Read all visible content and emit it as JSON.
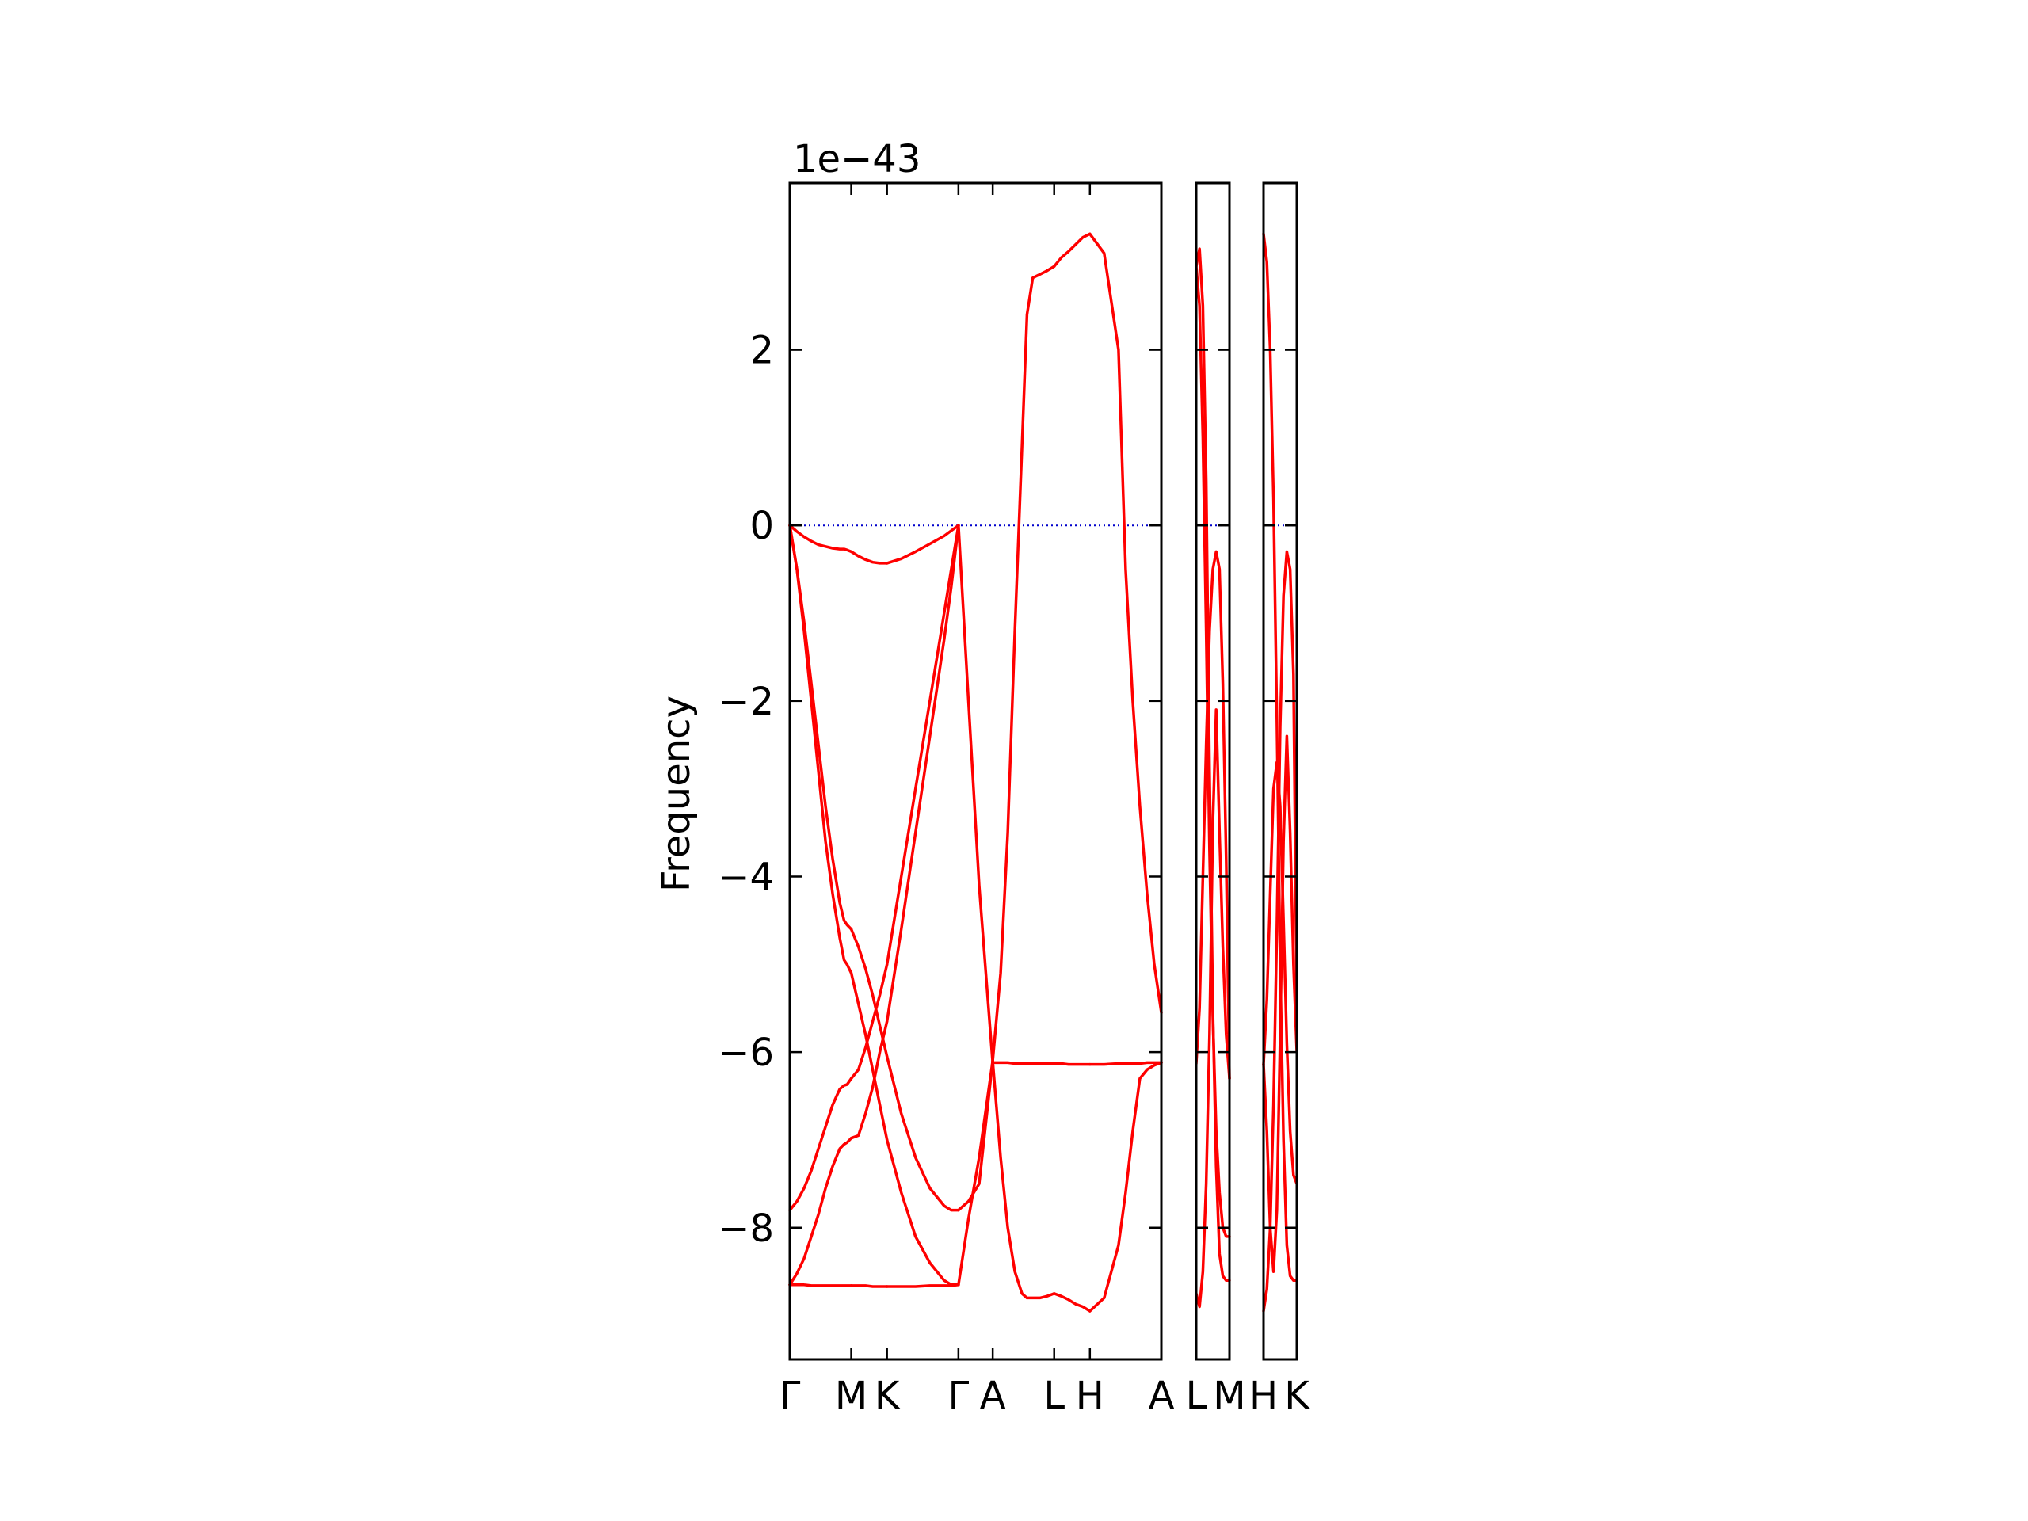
{
  "chart_data": {
    "type": "line",
    "ylabel": "Frequency",
    "xlabel": "",
    "offset_text": "1e−43",
    "y_scale": 1e-43,
    "ylim": [
      -9.5,
      3.9
    ],
    "y_ticks": [
      2,
      0,
      -2,
      -4,
      -6,
      -8
    ],
    "y_tick_labels": [
      "2",
      "0",
      "−2",
      "−4",
      "−6",
      "−8"
    ],
    "grid": false,
    "legend": "none",
    "colors": {
      "bands": "#ff0000",
      "zero_line": "#0000cc",
      "axes": "#000000"
    },
    "zero_line": {
      "y": 0,
      "style": "dotted"
    },
    "panels": [
      {
        "name": "main",
        "x_range": [
          0,
          5.2
        ],
        "kpoints": [
          {
            "label": "Γ",
            "x": 0
          },
          {
            "label": "M",
            "x": 0.86
          },
          {
            "label": "K",
            "x": 1.36
          },
          {
            "label": "Γ",
            "x": 2.36
          },
          {
            "label": "A",
            "x": 2.84
          },
          {
            "label": "L",
            "x": 3.7
          },
          {
            "label": "H",
            "x": 4.2
          },
          {
            "label": "A",
            "x": 5.2
          }
        ],
        "series": [
          {
            "segment": "Γ-M",
            "x": [
              0,
              0.1,
              0.2,
              0.3,
              0.4,
              0.5,
              0.6,
              0.7,
              0.76,
              0.8,
              0.86
            ],
            "bands": [
              [
                0,
                -0.07,
                -0.13,
                -0.18,
                -0.22,
                -0.24,
                -0.26,
                -0.27,
                -0.27,
                -0.28,
                -0.3
              ],
              [
                0,
                -0.5,
                -1.2,
                -2,
                -2.8,
                -3.6,
                -4.2,
                -4.7,
                -4.95,
                -5,
                -5.1
              ],
              [
                0,
                -0.5,
                -1.1,
                -1.8,
                -2.5,
                -3.2,
                -3.8,
                -4.3,
                -4.5,
                -4.55,
                -4.6
              ],
              [
                -7.8,
                -7.7,
                -7.55,
                -7.35,
                -7.1,
                -6.85,
                -6.6,
                -6.42,
                -6.38,
                -6.37,
                -6.3
              ],
              [
                -8.65,
                -8.52,
                -8.35,
                -8.1,
                -7.85,
                -7.55,
                -7.3,
                -7.1,
                -7.05,
                -7.03,
                -6.98
              ],
              [
                -8.65,
                -8.65,
                -8.65,
                -8.66,
                -8.66,
                -8.66,
                -8.66,
                -8.66,
                -8.66,
                -8.66,
                -8.66
              ]
            ]
          },
          {
            "segment": "M-K",
            "x": [
              0.86,
              0.96,
              1.06,
              1.16,
              1.26,
              1.36
            ],
            "bands": [
              [
                -0.3,
                -0.35,
                -0.39,
                -0.42,
                -0.43,
                -0.43
              ],
              [
                -5.1,
                -5.45,
                -5.8,
                -6.2,
                -6.6,
                -7.0
              ],
              [
                -4.6,
                -4.8,
                -5.05,
                -5.35,
                -5.7,
                -6.05
              ],
              [
                -6.3,
                -6.2,
                -5.95,
                -5.65,
                -5.35,
                -5.0
              ],
              [
                -6.98,
                -6.95,
                -6.7,
                -6.4,
                -6.0,
                -5.65
              ],
              [
                -8.66,
                -8.66,
                -8.66,
                -8.67,
                -8.67,
                -8.67
              ]
            ]
          },
          {
            "segment": "K-Γ",
            "x": [
              1.36,
              1.56,
              1.76,
              1.96,
              2.16,
              2.26,
              2.36
            ],
            "bands": [
              [
                -0.43,
                -0.38,
                -0.3,
                -0.21,
                -0.12,
                -0.06,
                0
              ],
              [
                -7.0,
                -7.6,
                -8.1,
                -8.4,
                -8.6,
                -8.65,
                -8.65
              ],
              [
                -6.05,
                -6.7,
                -7.2,
                -7.55,
                -7.75,
                -7.8,
                -7.8
              ],
              [
                -5.0,
                -4.0,
                -3.0,
                -2.0,
                -1.0,
                -0.5,
                0
              ],
              [
                -5.65,
                -4.6,
                -3.5,
                -2.4,
                -1.3,
                -0.7,
                0
              ],
              [
                -8.67,
                -8.67,
                -8.67,
                -8.66,
                -8.66,
                -8.66,
                -8.65
              ]
            ]
          },
          {
            "segment": "Γ-A",
            "x": [
              2.36,
              2.5,
              2.65,
              2.84
            ],
            "bands": [
              [
                0,
                -2.0,
                -4.1,
                -6.12
              ],
              [
                -7.8,
                -7.7,
                -7.5,
                -6.1
              ],
              [
                -8.65,
                -7.9,
                -7.2,
                -6.1
              ]
            ]
          },
          {
            "segment": "A-L",
            "x": [
              2.84,
              2.95,
              3.05,
              3.15,
              3.25,
              3.32,
              3.4,
              3.5,
              3.6,
              3.7
            ],
            "bands": [
              [
                -6.1,
                -7.2,
                -8.0,
                -8.5,
                -8.75,
                -8.8,
                -8.8,
                -8.8,
                -8.78,
                -8.75
              ],
              [
                -6.1,
                -5.1,
                -3.5,
                -1.2,
                0.9,
                2.4,
                2.82,
                2.86,
                2.9,
                2.95
              ],
              [
                -6.12,
                -6.12,
                -6.12,
                -6.13,
                -6.13,
                -6.13,
                -6.13,
                -6.13,
                -6.13,
                -6.13
              ]
            ]
          },
          {
            "segment": "L-H",
            "x": [
              3.7,
              3.8,
              3.9,
              4.0,
              4.1,
              4.2
            ],
            "bands": [
              [
                -8.75,
                -8.78,
                -8.82,
                -8.87,
                -8.9,
                -8.95
              ],
              [
                2.95,
                3.05,
                3.12,
                3.2,
                3.28,
                3.32
              ],
              [
                -6.13,
                -6.13,
                -6.14,
                -6.14,
                -6.14,
                -6.14
              ]
            ]
          },
          {
            "segment": "H-A",
            "x": [
              4.2,
              4.4,
              4.6,
              4.7,
              4.8,
              4.9,
              5.0,
              5.1,
              5.2
            ],
            "bands": [
              [
                -8.95,
                -8.8,
                -8.2,
                -7.6,
                -6.9,
                -6.3,
                -6.2,
                -6.15,
                -6.12
              ],
              [
                3.32,
                3.1,
                2.0,
                -0.5,
                -2.0,
                -3.2,
                -4.2,
                -5.0,
                -5.55
              ],
              [
                -6.14,
                -6.14,
                -6.13,
                -6.13,
                -6.13,
                -6.13,
                -6.12,
                -6.12,
                -6.12
              ]
            ]
          }
        ]
      },
      {
        "name": "L-M",
        "x_range": [
          0,
          1
        ],
        "kpoints": [
          {
            "label": "L",
            "x": 0
          },
          {
            "label": "M",
            "x": 1
          }
        ],
        "series": [
          {
            "segment": "L-M",
            "x": [
              0,
              0.1,
              0.2,
              0.3,
              0.4,
              0.5,
              0.6,
              0.7,
              0.8,
              0.9,
              1
            ],
            "bands": [
              [
                2.95,
                3.15,
                2.5,
                0.5,
                -2.8,
                -5.5,
                -7.3,
                -8.3,
                -8.55,
                -8.6,
                -8.6
              ],
              [
                -8.75,
                -8.9,
                -8.5,
                -7.5,
                -5.8,
                -3.4,
                -2.1,
                -3.5,
                -4.8,
                -5.8,
                -6.3
              ],
              [
                -6.13,
                -5.5,
                -4.0,
                -2.5,
                -1.2,
                -0.5,
                -0.3,
                -0.5,
                -1.8,
                -3.8,
                -6.3
              ],
              [
                2.95,
                2.5,
                1.0,
                -1.2,
                -3.7,
                -5.6,
                -6.9,
                -7.6,
                -8.0,
                -8.1,
                -8.1
              ]
            ]
          }
        ]
      },
      {
        "name": "H-K",
        "x_range": [
          0,
          1
        ],
        "kpoints": [
          {
            "label": "H",
            "x": 0
          },
          {
            "label": "K",
            "x": 1
          }
        ],
        "series": [
          {
            "segment": "H-K",
            "x": [
              0,
              0.1,
              0.2,
              0.3,
              0.4,
              0.5,
              0.6,
              0.7,
              0.8,
              0.9,
              1
            ],
            "bands": [
              [
                3.32,
                3.0,
                2.0,
                0.3,
                -2.2,
                -5.0,
                -7.0,
                -8.2,
                -8.55,
                -8.6,
                -8.6
              ],
              [
                -8.95,
                -8.7,
                -8.0,
                -6.6,
                -4.6,
                -2.3,
                -0.8,
                -0.3,
                -0.5,
                -1.7,
                -5.5
              ],
              [
                -6.14,
                -6.9,
                -8.0,
                -8.5,
                -7.8,
                -5.8,
                -3.6,
                -2.4,
                -3.5,
                -5.0,
                -6.0
              ],
              [
                -6.14,
                -5.4,
                -4.2,
                -3.0,
                -2.7,
                -3.2,
                -4.5,
                -5.9,
                -6.9,
                -7.4,
                -7.5
              ]
            ]
          }
        ]
      }
    ]
  }
}
